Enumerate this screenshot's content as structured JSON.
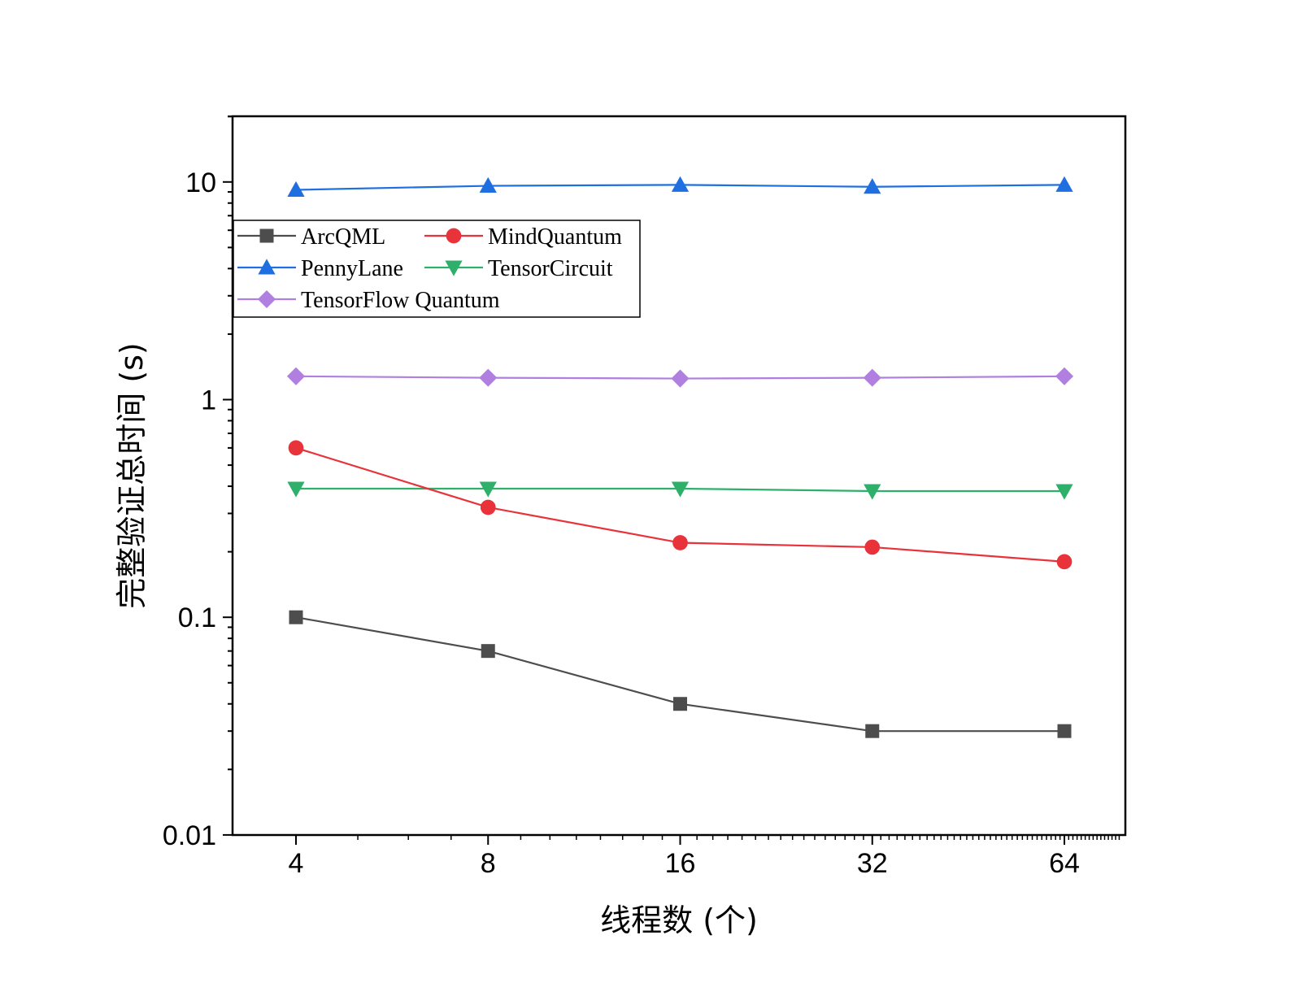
{
  "chart_data": {
    "type": "line",
    "x": [
      4,
      8,
      16,
      32,
      64
    ],
    "xscale": "log2",
    "yscale": "log10",
    "ylim": [
      0.01,
      20
    ],
    "xticklabels": [
      "4",
      "8",
      "16",
      "32",
      "64"
    ],
    "yticklabels": [
      "0.01",
      "0.1",
      "1",
      "10"
    ],
    "xlabel": "线程数 (个)",
    "ylabel": "完整验证总时间 (s)",
    "grid": false,
    "legend_position": "top-left",
    "series": [
      {
        "name": "ArcQML",
        "color": "#4d4d4d",
        "marker": "square",
        "values": [
          0.1,
          0.07,
          0.04,
          0.03,
          0.03
        ]
      },
      {
        "name": "MindQuantum",
        "color": "#e8333a",
        "marker": "circle",
        "values": [
          0.6,
          0.32,
          0.22,
          0.21,
          0.18
        ]
      },
      {
        "name": "PennyLane",
        "color": "#1f6fe0",
        "marker": "triangle-up",
        "values": [
          9.2,
          9.6,
          9.7,
          9.5,
          9.7
        ]
      },
      {
        "name": "TensorCircuit",
        "color": "#2eb06a",
        "marker": "triangle-down",
        "values": [
          0.39,
          0.39,
          0.39,
          0.38,
          0.38
        ]
      },
      {
        "name": "TensorFlow Quantum",
        "color": "#b07fe0",
        "marker": "diamond",
        "values": [
          1.28,
          1.26,
          1.25,
          1.26,
          1.28
        ]
      }
    ]
  }
}
